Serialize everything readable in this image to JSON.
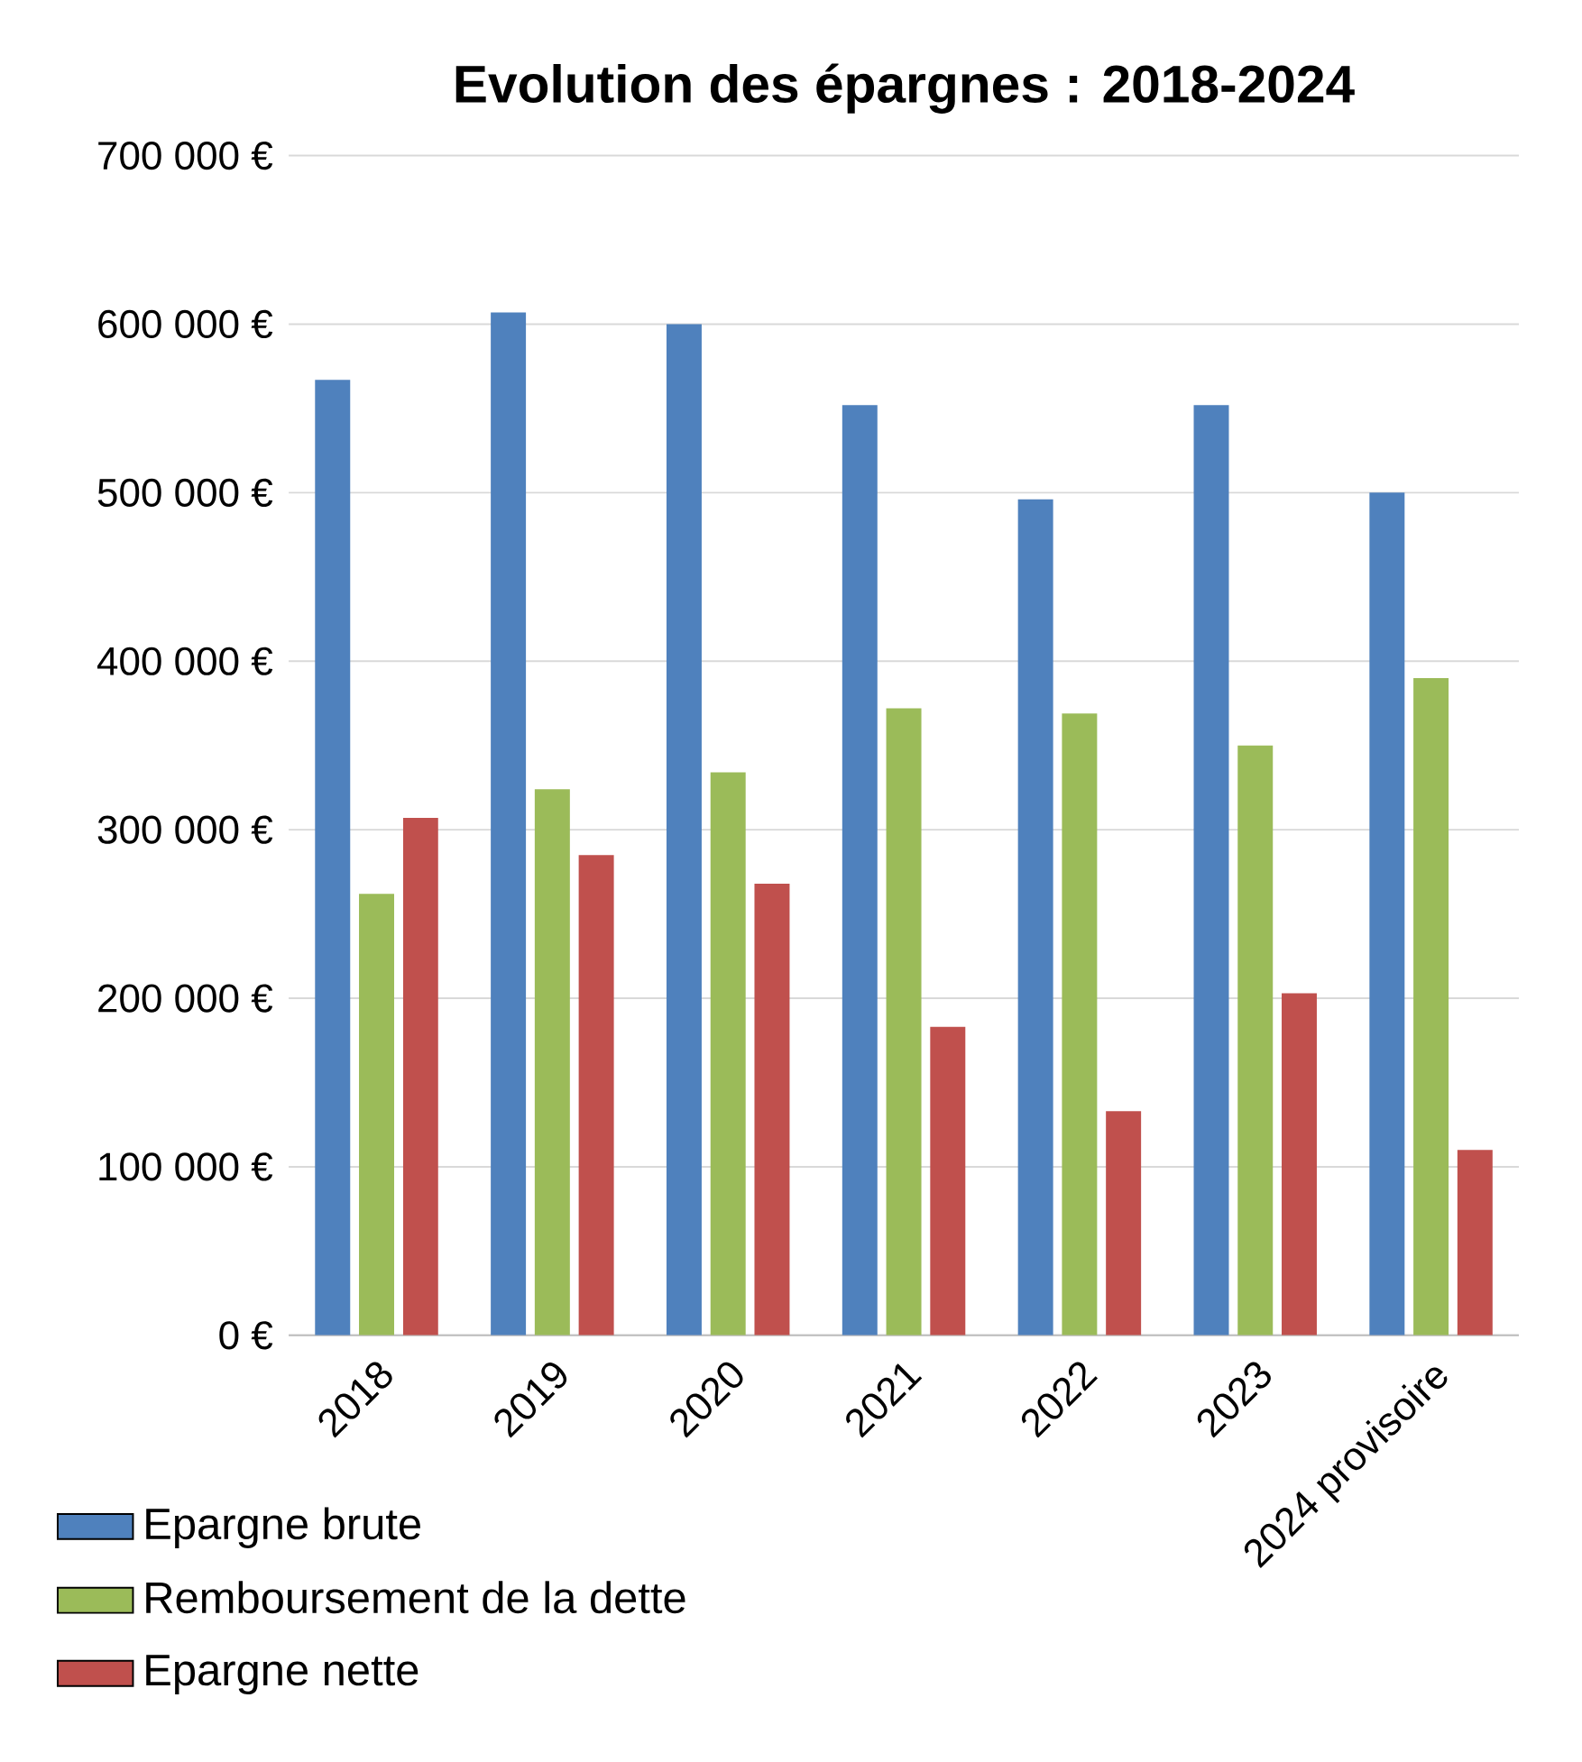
{
  "chart_data": {
    "type": "bar",
    "title": "Evolution des épargnes : 2018-2024",
    "categories": [
      "2018",
      "2019",
      "2020",
      "2021",
      "2022",
      "2023",
      "2024 provisoire"
    ],
    "series": [
      {
        "name": "Epargne brute",
        "color": "#4f81bd",
        "values": [
          567000,
          607000,
          600000,
          552000,
          496000,
          552000,
          500000
        ]
      },
      {
        "name": "Remboursement de la dette",
        "color": "#9bbb59",
        "values": [
          262000,
          324000,
          334000,
          372000,
          369000,
          350000,
          390000
        ]
      },
      {
        "name": "Epargne nette",
        "color": "#c0504d",
        "values": [
          307000,
          285000,
          268000,
          183000,
          133000,
          203000,
          110000
        ]
      }
    ],
    "ylim": [
      0,
      700000
    ],
    "yticks": [
      {
        "value": 0,
        "label": "0 €"
      },
      {
        "value": 100000,
        "label": "100 000 €"
      },
      {
        "value": 200000,
        "label": "200 000 €"
      },
      {
        "value": 300000,
        "label": "300 000 €"
      },
      {
        "value": 400000,
        "label": "400 000 €"
      },
      {
        "value": 500000,
        "label": "500 000 €"
      },
      {
        "value": 600000,
        "label": "600 000 €"
      },
      {
        "value": 700000,
        "label": "700 000 €"
      }
    ],
    "grid": "y",
    "legend": "bottom left"
  }
}
